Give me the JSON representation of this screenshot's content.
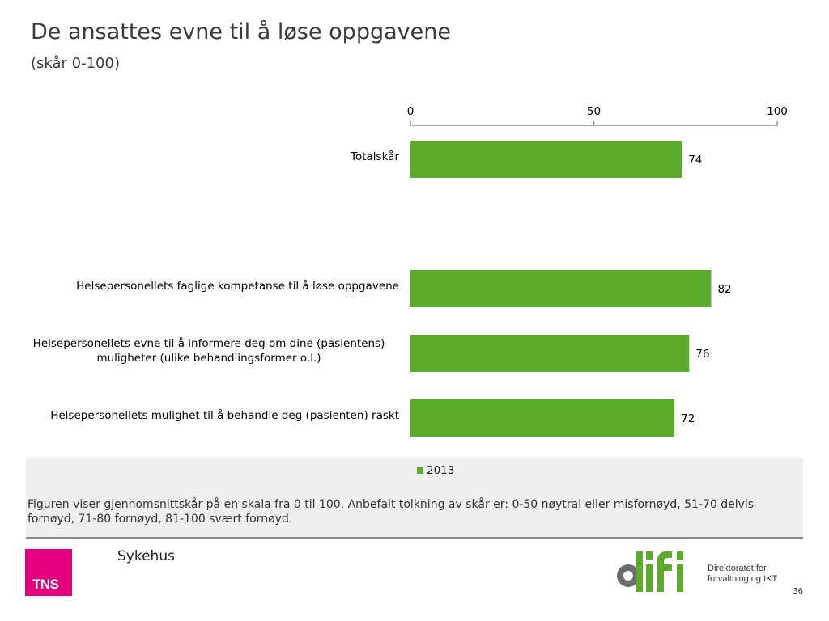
{
  "title": "De ansattes evne til å løse oppgavene",
  "subtitle": "(skår 0-100)",
  "chart_data": {
    "type": "bar",
    "orientation": "horizontal",
    "xlim": [
      0,
      100
    ],
    "ticks": [
      0,
      50,
      100
    ],
    "tick_labels": [
      "0",
      "50",
      "100"
    ],
    "axis_position": "top",
    "categories": [
      [
        "Totalskår"
      ],
      [
        "Helsepersonellets faglige kompetanse til å løse oppgavene"
      ],
      [
        "Helsepersonellets evne til å informere deg om dine (pasientens)",
        "muligheter (ulike behandlingsformer o.l.)"
      ],
      [
        "Helsepersonellets mulighet til å behandle deg (pasienten) raskt"
      ]
    ],
    "series": [
      {
        "name": "2013",
        "values": [
          74,
          82,
          76,
          72
        ],
        "color": "#5aac2a"
      }
    ],
    "data_labels": [
      "74",
      "82",
      "76",
      "72"
    ],
    "grid": false,
    "legend_placement": "bottom"
  },
  "note": "Figuren viser gjennomsnittskår på en skala fra 0 til 100. Anbefalt tolkning av skår er: 0-50 nøytral eller misfornøyd, 51-70 delvis fornøyd, 71-80 fornøyd, 81-100 svært fornøyd.",
  "footer": {
    "tns_logo_text": "TNS",
    "section_label": "Sykehus",
    "difi_wordmark": "difi",
    "difi_line1": "Direktoratet for",
    "difi_line2": "forvaltning og IKT",
    "page_number": "36"
  },
  "colors": {
    "bar": "#5aac2a",
    "tns": "#e5007e",
    "difi_green": "#5aac2a",
    "difi_grey": "#6d6e71"
  }
}
